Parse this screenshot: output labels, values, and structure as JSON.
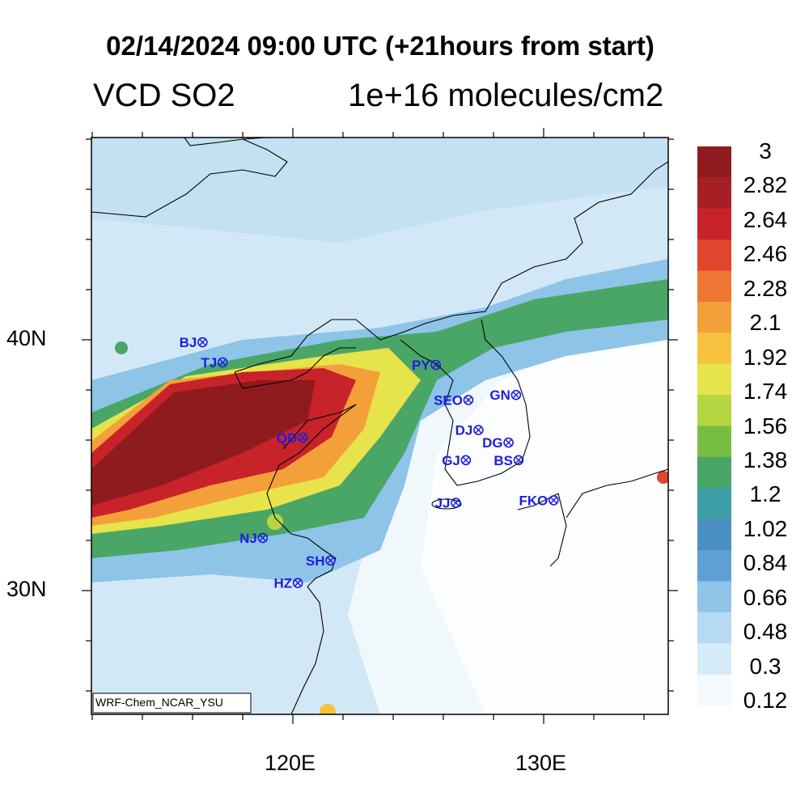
{
  "title": "02/14/2024 09:00 UTC (+21hours from start)",
  "variable": "VCD SO2",
  "units": "1e+16 molecules/cm2",
  "model_label": "WRF-Chem_NCAR_YSU",
  "axes": {
    "x_ticks": [
      {
        "label": "120E",
        "lon": 120
      },
      {
        "label": "130E",
        "lon": 130
      }
    ],
    "y_ticks": [
      {
        "label": "40N",
        "lat": 40
      },
      {
        "label": "30N",
        "lat": 30
      }
    ]
  },
  "colorbar": {
    "labels": [
      "3",
      "2.82",
      "2.64",
      "2.46",
      "2.28",
      "2.1",
      "1.92",
      "1.74",
      "1.56",
      "1.38",
      "1.2",
      "1.02",
      "0.84",
      "0.66",
      "0.48",
      "0.3",
      "0.12"
    ],
    "colors": [
      "#f4f9fd",
      "#d6ebf8",
      "#b5daf1",
      "#8ec4e8",
      "#5e9fd5",
      "#4a8fc4",
      "#3f9fa8",
      "#49a667",
      "#78bd43",
      "#b5d641",
      "#e7e34a",
      "#f6c23f",
      "#f4a03a",
      "#ec7632",
      "#e0462d",
      "#c8232b",
      "#a61f24",
      "#8f1b1e"
    ]
  },
  "stations": [
    {
      "code": "BJ",
      "lon": 116.4,
      "lat": 39.9
    },
    {
      "code": "TJ",
      "lon": 117.2,
      "lat": 39.1
    },
    {
      "code": "PY",
      "lon": 125.7,
      "lat": 39.0
    },
    {
      "code": "SEO",
      "lon": 127.0,
      "lat": 37.6
    },
    {
      "code": "GN",
      "lon": 128.9,
      "lat": 37.8
    },
    {
      "code": "QD",
      "lon": 120.4,
      "lat": 36.1
    },
    {
      "code": "DJ",
      "lon": 127.4,
      "lat": 36.4
    },
    {
      "code": "DG",
      "lon": 128.6,
      "lat": 35.9
    },
    {
      "code": "GJ",
      "lon": 126.9,
      "lat": 35.2
    },
    {
      "code": "BS",
      "lon": 129.0,
      "lat": 35.2
    },
    {
      "code": "JJ",
      "lon": 126.5,
      "lat": 33.5
    },
    {
      "code": "FKO",
      "lon": 130.4,
      "lat": 33.6
    },
    {
      "code": "NJ",
      "lon": 118.8,
      "lat": 32.1
    },
    {
      "code": "SH",
      "lon": 121.5,
      "lat": 31.2
    },
    {
      "code": "HZ",
      "lon": 120.2,
      "lat": 30.3
    }
  ]
}
